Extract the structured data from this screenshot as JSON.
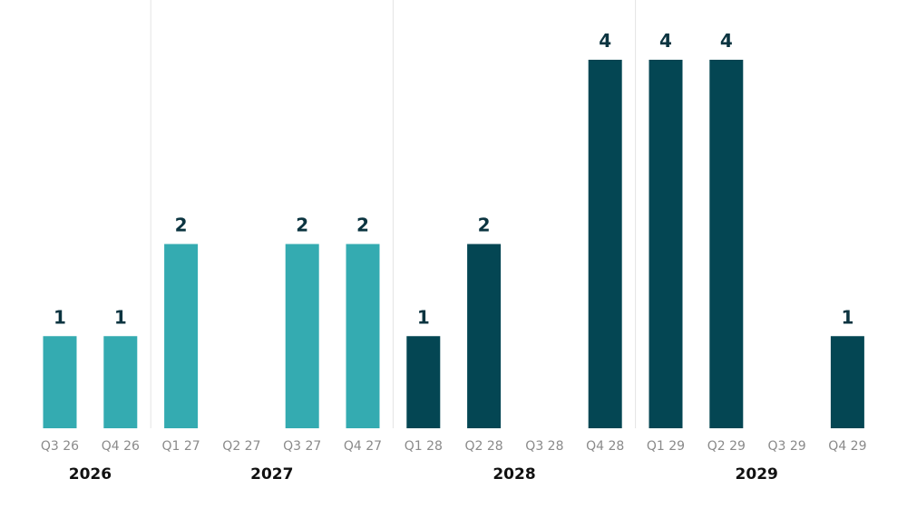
{
  "chart_data": {
    "type": "bar",
    "categories": [
      "Q3 26",
      "Q4 26",
      "Q1 27",
      "Q2 27",
      "Q3 27",
      "Q4 27",
      "Q1 28",
      "Q2 28",
      "Q3 28",
      "Q4 28",
      "Q1 29",
      "Q2 29",
      "Q3 29",
      "Q4 29"
    ],
    "values": [
      1,
      1,
      2,
      null,
      2,
      2,
      1,
      2,
      null,
      4,
      4,
      4,
      null,
      1
    ],
    "colors": [
      "#34abb1",
      "#34abb1",
      "#34abb1",
      "#34abb1",
      "#34abb1",
      "#34abb1",
      "#044653",
      "#044653",
      "#044653",
      "#044653",
      "#044653",
      "#044653",
      "#044653",
      "#044653"
    ],
    "year_groups": [
      {
        "label": "2026",
        "start": 0,
        "end": 1
      },
      {
        "label": "2027",
        "start": 2,
        "end": 5
      },
      {
        "label": "2028",
        "start": 6,
        "end": 9
      },
      {
        "label": "2029",
        "start": 10,
        "end": 13
      }
    ],
    "ylim": [
      0,
      4
    ],
    "grid": false,
    "legend": "none"
  }
}
